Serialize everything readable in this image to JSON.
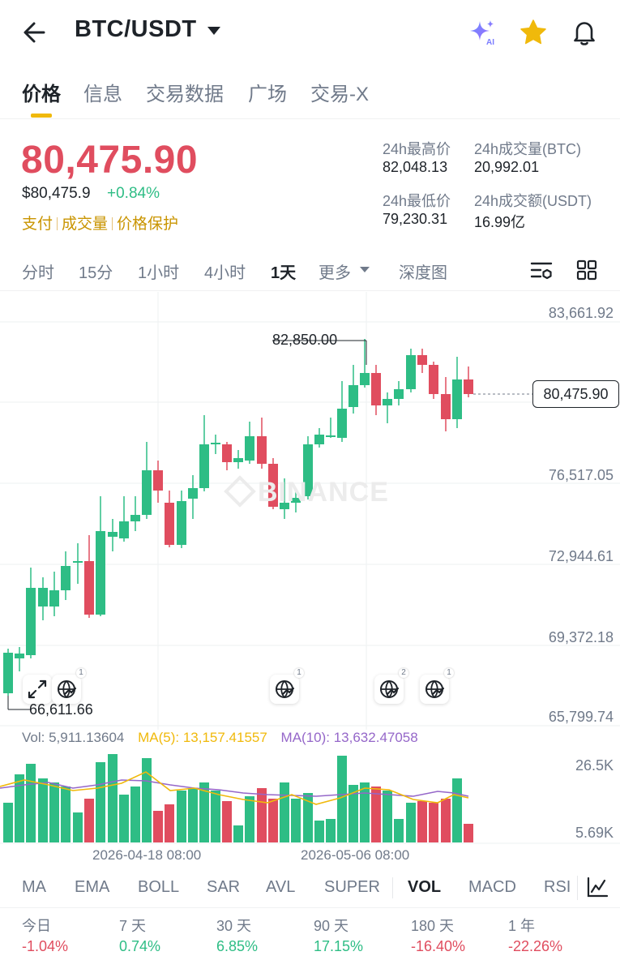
{
  "header": {
    "pair": "BTC/USDT",
    "ai_badge": "AI"
  },
  "tabs": [
    "价格",
    "信息",
    "交易数据",
    "广场",
    "交易-X"
  ],
  "price": {
    "last": "80,475.90",
    "usd": "$80,475.9",
    "change_pct": "+0.84%",
    "tags": [
      "支付",
      "成交量",
      "价格保护"
    ]
  },
  "stats": {
    "high_label": "24h最高价",
    "high": "82,048.13",
    "vol_btc_label": "24h成交量(BTC)",
    "vol_btc": "20,992.01",
    "low_label": "24h最低价",
    "low": "79,230.31",
    "vol_usdt_label": "24h成交额(USDT)",
    "vol_usdt": "16.99亿"
  },
  "intervals": [
    "分时",
    "15分",
    "1小时",
    "4小时",
    "1天",
    "更多",
    "深度图"
  ],
  "active_interval": "1天",
  "chart": {
    "watermark": "BINANCE",
    "y_ticks": [
      "83,661.92",
      "76,517.05",
      "72,944.61",
      "69,372.18",
      "65,799.74"
    ],
    "current_price_tag": "80,475.90",
    "high_marker": "82,850.00",
    "low_marker": "66,611.66",
    "badges": [
      "1",
      "1",
      "2",
      "1"
    ],
    "colors": {
      "up": "#2ebd85",
      "down": "#e04d5f",
      "ma5": "#f0b90b",
      "ma10": "#9567c9"
    }
  },
  "volume": {
    "vol_label": "Vol: 5,911.13604",
    "ma5_label": "MA(5): 13,157.41557",
    "ma10_label": "MA(10): 13,632.47058",
    "y_ticks": [
      "26.5K",
      "5.69K"
    ],
    "dates": [
      "2026-04-18 08:00",
      "2026-05-06 08:00"
    ]
  },
  "indicators": [
    "MA",
    "EMA",
    "BOLL",
    "SAR",
    "AVL",
    "SUPER",
    "VOL",
    "MACD",
    "RSI"
  ],
  "active_indicator": "VOL",
  "performance": [
    {
      "label": "今日",
      "value": "-1.04%"
    },
    {
      "label": "7 天",
      "value": "0.74%"
    },
    {
      "label": "30 天",
      "value": "6.85%"
    },
    {
      "label": "90 天",
      "value": "17.15%"
    },
    {
      "label": "180 天",
      "value": "-16.40%"
    },
    {
      "label": "1 年",
      "value": "-22.26%"
    }
  ]
}
